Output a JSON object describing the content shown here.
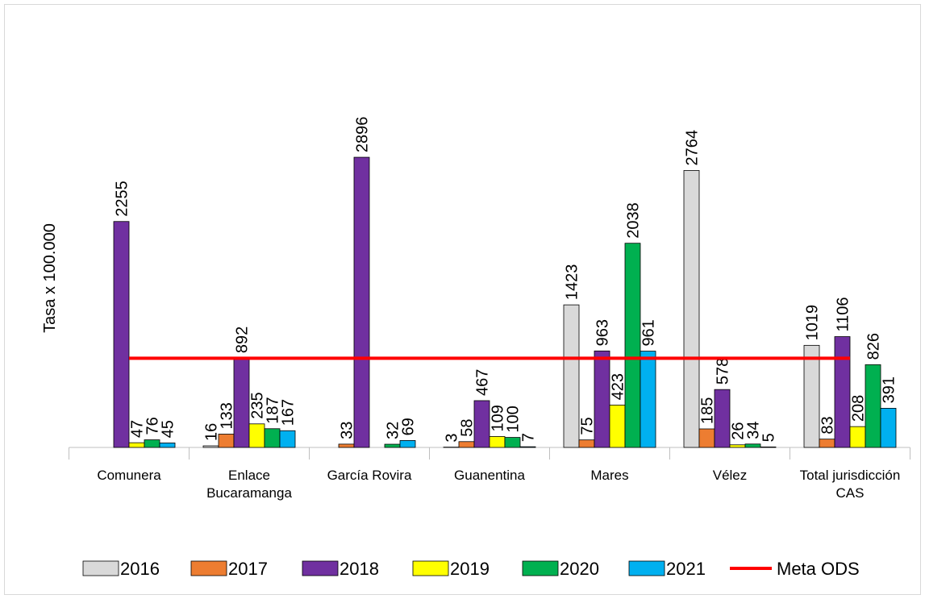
{
  "chart_data": {
    "type": "bar",
    "ylabel": "Tasa x 100.000",
    "categories": [
      "Comunera",
      "Enlace Bucaramanga",
      "García Rovira",
      "Guanentina",
      "Mares",
      "Vélez",
      "Total jurisdicción CAS"
    ],
    "ylim": [
      0,
      3500
    ],
    "series": [
      {
        "name": "2016",
        "color": "#d9d9d9",
        "values": [
          null,
          16,
          null,
          3,
          1423,
          2764,
          1019
        ]
      },
      {
        "name": "2017",
        "color": "#ed7d31",
        "values": [
          null,
          133,
          33,
          58,
          75,
          185,
          83
        ]
      },
      {
        "name": "2018",
        "color": "#7030a0",
        "values": [
          2255,
          892,
          2896,
          467,
          963,
          578,
          1106
        ]
      },
      {
        "name": "2019",
        "color": "#ffff00",
        "values": [
          47,
          235,
          null,
          109,
          423,
          26,
          208
        ]
      },
      {
        "name": "2020",
        "color": "#00b050",
        "values": [
          76,
          187,
          32,
          100,
          2038,
          34,
          826
        ]
      },
      {
        "name": "2021",
        "color": "#00b0f0",
        "values": [
          45,
          167,
          69,
          7,
          961,
          5,
          391
        ]
      },
      {
        "name": "Meta ODS",
        "type": "line",
        "color": "#ff0000",
        "values": [
          890,
          890,
          890,
          890,
          890,
          890,
          890
        ]
      }
    ]
  }
}
